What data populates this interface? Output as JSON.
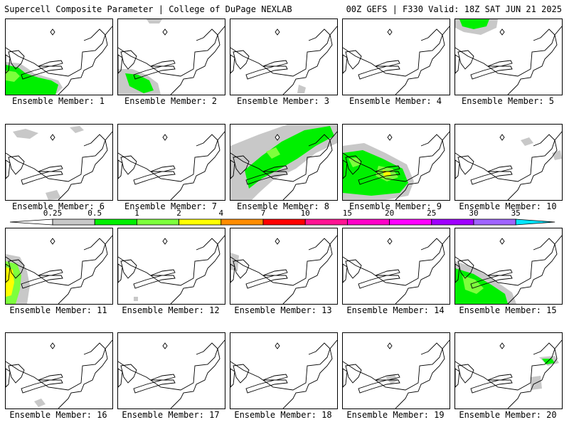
{
  "header": {
    "title": "Supercell Composite Parameter | College of DuPage NEXLAB",
    "run_info": "00Z GEFS | F330 Valid: 18Z SAT JUN 21 2025"
  },
  "legend": {
    "bins": [
      {
        "label": "0.25",
        "color": "#c8c8c8"
      },
      {
        "label": "0.5",
        "color": "#00f000"
      },
      {
        "label": "1",
        "color": "#7dff3c"
      },
      {
        "label": "2",
        "color": "#ffff00"
      },
      {
        "label": "4",
        "color": "#ff8c00"
      },
      {
        "label": "7",
        "color": "#ff0000"
      },
      {
        "label": "10",
        "color": "#ff1493"
      },
      {
        "label": "15",
        "color": "#ff00c8"
      },
      {
        "label": "20",
        "color": "#ff00ff"
      },
      {
        "label": "25",
        "color": "#a000ff"
      },
      {
        "label": "30",
        "color": "#a064ff"
      },
      {
        "label": "35",
        "color": "#00e6ff"
      }
    ]
  },
  "members": [
    {
      "label": "Ensemble Member: 1"
    },
    {
      "label": "Ensemble Member: 2"
    },
    {
      "label": "Ensemble Member: 3"
    },
    {
      "label": "Ensemble Member: 4"
    },
    {
      "label": "Ensemble Member: 5"
    },
    {
      "label": "Ensemble Member: 6"
    },
    {
      "label": "Ensemble Member: 7"
    },
    {
      "label": "Ensemble Member: 8"
    },
    {
      "label": "Ensemble Member: 9"
    },
    {
      "label": "Ensemble Member: 10"
    },
    {
      "label": "Ensemble Member: 11"
    },
    {
      "label": "Ensemble Member: 12"
    },
    {
      "label": "Ensemble Member: 13"
    },
    {
      "label": "Ensemble Member: 14"
    },
    {
      "label": "Ensemble Member: 15"
    },
    {
      "label": "Ensemble Member: 16"
    },
    {
      "label": "Ensemble Member: 17"
    },
    {
      "label": "Ensemble Member: 18"
    },
    {
      "label": "Ensemble Member: 19"
    },
    {
      "label": "Ensemble Member: 20"
    }
  ]
}
